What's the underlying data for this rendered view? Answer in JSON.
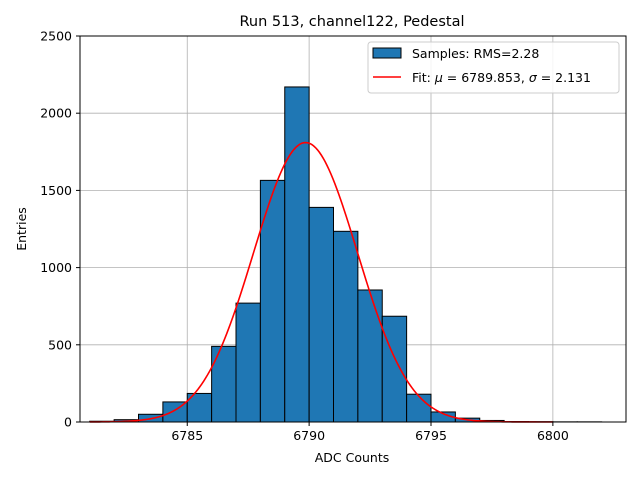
{
  "chart_data": {
    "type": "bar",
    "title": "Run 513, channel122, Pedestal",
    "xlabel": "ADC Counts",
    "ylabel": "Entries",
    "xlim": [
      6780.6,
      6803.0
    ],
    "ylim": [
      0,
      2500
    ],
    "xticks": [
      6785,
      6790,
      6795,
      6800
    ],
    "yticks": [
      0,
      500,
      1000,
      1500,
      2000,
      2500
    ],
    "grid": true,
    "legend_position": "top-right",
    "histogram": {
      "name": "Samples: RMS=2.28",
      "color": "#1f77b4",
      "edgecolor": "#000000",
      "bin_width": 1,
      "bin_lefts": [
        6781,
        6782,
        6783,
        6784,
        6785,
        6786,
        6787,
        6788,
        6789,
        6790,
        6791,
        6792,
        6793,
        6794,
        6795,
        6796,
        6797,
        6798,
        6799,
        6800,
        6801
      ],
      "values": [
        5,
        15,
        50,
        130,
        185,
        490,
        770,
        1565,
        2170,
        1390,
        1235,
        855,
        685,
        180,
        65,
        25,
        10,
        3,
        2,
        1,
        1
      ]
    },
    "fit": {
      "name_prefix": "Fit: ",
      "mu_symbol": "μ",
      "mu_text": " = 6789.853, ",
      "sigma_symbol": "σ",
      "sigma_text": " = 2.131",
      "color": "#ff0000",
      "type": "gaussian",
      "mu": 6789.853,
      "sigma": 2.131,
      "amplitude": 1810,
      "x_range": [
        6781,
        6800
      ]
    }
  }
}
